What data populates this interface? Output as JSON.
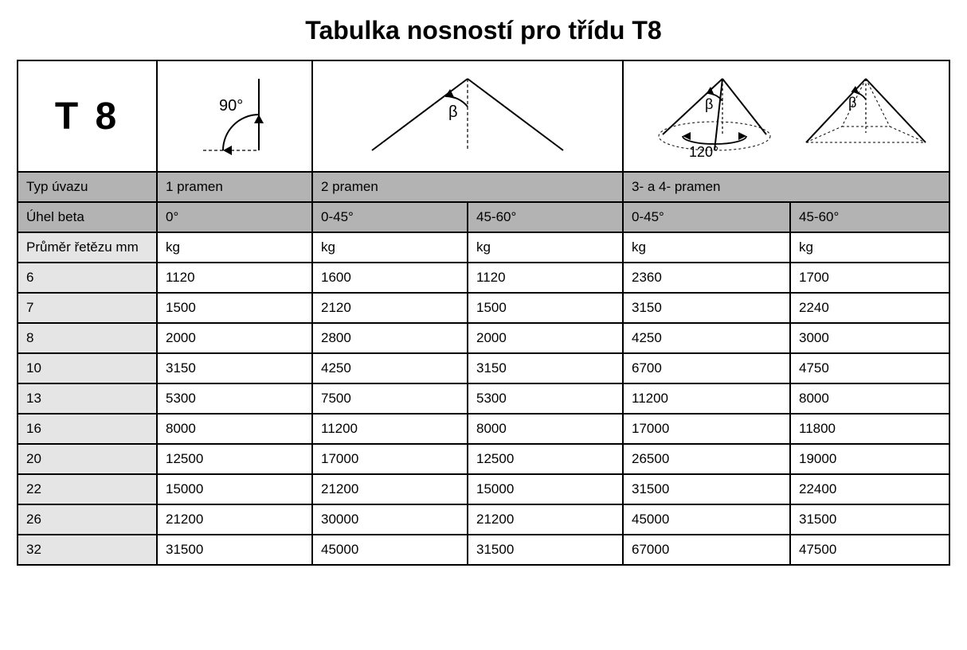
{
  "title": "Tabulka nosností pro třídu T8",
  "class_label": "T 8",
  "diagram_labels": {
    "single_angle": "90°",
    "beta": "β",
    "base_angle": "120°"
  },
  "header_rows": {
    "typ_label": "Typ úvazu",
    "typ_values": [
      "1 pramen",
      "2 pramen",
      "3- a 4- pramen"
    ],
    "angle_label": "Úhel beta",
    "angle_values": [
      "0°",
      "0-45°",
      "45-60°",
      "0-45°",
      "45-60°"
    ],
    "diameter_label": "Průměr řetězu mm",
    "unit_values": [
      "kg",
      "kg",
      "kg",
      "kg",
      "kg"
    ]
  },
  "rows": [
    {
      "d": "6",
      "v": [
        "1120",
        "1600",
        "1120",
        "2360",
        "1700"
      ]
    },
    {
      "d": "7",
      "v": [
        "1500",
        "2120",
        "1500",
        "3150",
        "2240"
      ]
    },
    {
      "d": "8",
      "v": [
        "2000",
        "2800",
        "2000",
        "4250",
        "3000"
      ]
    },
    {
      "d": "10",
      "v": [
        "3150",
        "4250",
        "3150",
        "6700",
        "4750"
      ]
    },
    {
      "d": "13",
      "v": [
        "5300",
        "7500",
        "5300",
        "11200",
        "8000"
      ]
    },
    {
      "d": "16",
      "v": [
        "8000",
        "11200",
        "8000",
        "17000",
        "11800"
      ]
    },
    {
      "d": "20",
      "v": [
        "12500",
        "17000",
        "12500",
        "26500",
        "19000"
      ]
    },
    {
      "d": "22",
      "v": [
        "15000",
        "21200",
        "15000",
        "31500",
        "22400"
      ]
    },
    {
      "d": "26",
      "v": [
        "21200",
        "30000",
        "21200",
        "45000",
        "31500"
      ]
    },
    {
      "d": "32",
      "v": [
        "31500",
        "45000",
        "31500",
        "67000",
        "47500"
      ]
    }
  ],
  "style": {
    "border_color": "#000000",
    "header_bg": "#b3b3b3",
    "firstcol_bg": "#e5e5e5",
    "font_size_body": 17,
    "font_size_title": 32,
    "font_size_t8": 48
  }
}
